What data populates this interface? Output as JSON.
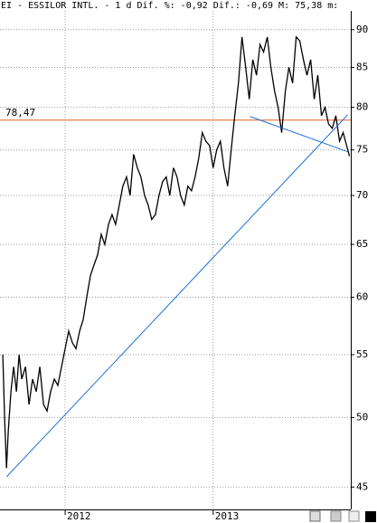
{
  "chart_data": {
    "type": "line",
    "title": "EI - ESSILOR INTL. -  1 d Dif. %: -0,92 Dif.: -0,69 M: 75,38 m:",
    "x": [
      2011.579,
      2011.591,
      2011.604,
      2011.616,
      2011.634,
      2011.652,
      2011.671,
      2011.689,
      2011.707,
      2011.732,
      2011.756,
      2011.78,
      2011.805,
      2011.829,
      2011.854,
      2011.878,
      2011.902,
      2011.927,
      2011.951,
      2011.976,
      2012.0,
      2012.024,
      2012.049,
      2012.073,
      2012.098,
      2012.122,
      2012.146,
      2012.171,
      2012.195,
      2012.22,
      2012.244,
      2012.268,
      2012.293,
      2012.317,
      2012.341,
      2012.366,
      2012.39,
      2012.415,
      2012.439,
      2012.463,
      2012.488,
      2012.512,
      2012.537,
      2012.561,
      2012.585,
      2012.61,
      2012.634,
      2012.659,
      2012.683,
      2012.707,
      2012.732,
      2012.756,
      2012.78,
      2012.805,
      2012.829,
      2012.854,
      2012.878,
      2012.902,
      2012.927,
      2012.951,
      2012.976,
      2013.0,
      2013.024,
      2013.049,
      2013.073,
      2013.098,
      2013.122,
      2013.146,
      2013.171,
      2013.195,
      2013.22,
      2013.244,
      2013.268,
      2013.293,
      2013.317,
      2013.341,
      2013.366,
      2013.39,
      2013.415,
      2013.439,
      2013.463,
      2013.488,
      2013.512,
      2013.537,
      2013.561,
      2013.585,
      2013.61,
      2013.634,
      2013.659,
      2013.683,
      2013.707,
      2013.732,
      2013.756,
      2013.78,
      2013.805,
      2013.829,
      2013.854,
      2013.878,
      2013.902,
      2013.921
    ],
    "series": [
      {
        "color": "#000000",
        "values": [
          55,
          50,
          46.3,
          49,
          52,
          54,
          52,
          55,
          53,
          54,
          51,
          53,
          52,
          54,
          51,
          50.5,
          52,
          53,
          52.5,
          54,
          55.5,
          57,
          56,
          55.5,
          57,
          58,
          60,
          62,
          63,
          64,
          66,
          65,
          67,
          68,
          67,
          69,
          71,
          72,
          70,
          74.5,
          73,
          72,
          70,
          69,
          67.5,
          68,
          70,
          71.5,
          72,
          70,
          73,
          72,
          70,
          69,
          71,
          70.5,
          72,
          74,
          77,
          76,
          75.5,
          73,
          75,
          76,
          73,
          71,
          75,
          79,
          83,
          89,
          85,
          81,
          86,
          84,
          88,
          87,
          89,
          85,
          82,
          80,
          77,
          82,
          85,
          83,
          89,
          88.5,
          86,
          84,
          86,
          81,
          84,
          79,
          80,
          78,
          77.5,
          79,
          76,
          77,
          75.5,
          74.3
        ]
      }
    ],
    "xlim": [
      2011.56,
      2013.93
    ],
    "ylim": [
      43.5,
      92.6
    ],
    "log_y": true,
    "grid": true,
    "xticks": [
      2012,
      2013
    ],
    "yticks": [
      45,
      50,
      55,
      60,
      65,
      70,
      75,
      80,
      85,
      90
    ],
    "hlines": [
      {
        "value": 78.47,
        "label": "78,47",
        "color": "#e0601c"
      }
    ],
    "trendlines": [
      {
        "color": "#1e6fd8",
        "x": [
          2011.604,
          2013.909
        ],
        "values": [
          45.7,
          79.1
        ]
      },
      {
        "color": "#1e6fd8",
        "x": [
          2013.25,
          2013.909
        ],
        "values": [
          78.9,
          74.8
        ]
      }
    ]
  }
}
